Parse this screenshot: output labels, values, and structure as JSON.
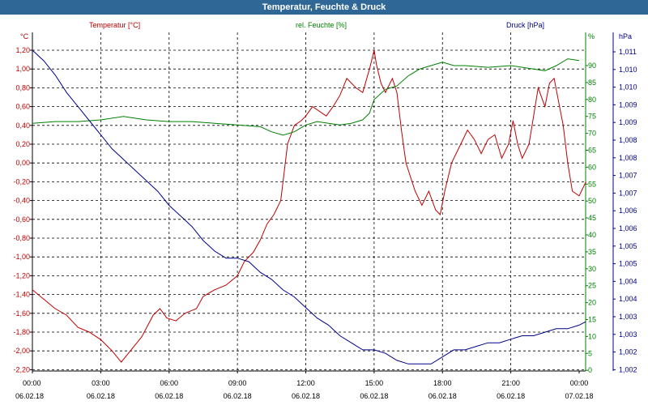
{
  "window": {
    "title": "Temperatur, Feuchte & Druck"
  },
  "chart_data": {
    "type": "line",
    "title": "Temperatur, Feuchte & Druck",
    "grid": true,
    "x_ticks": [
      {
        "time": "00:00",
        "date": "06.02.18"
      },
      {
        "time": "03:00",
        "date": "06.02.18"
      },
      {
        "time": "06:00",
        "date": "06.02.18"
      },
      {
        "time": "09:00",
        "date": "06.02.18"
      },
      {
        "time": "12:00",
        "date": "06.02.18"
      },
      {
        "time": "15:00",
        "date": "06.02.18"
      },
      {
        "time": "18:00",
        "date": "06.02.18"
      },
      {
        "time": "21:00",
        "date": "06.02.18"
      },
      {
        "time": "00:00",
        "date": "07.02.18"
      }
    ],
    "xlim_hours": [
      0,
      24
    ],
    "axes": {
      "temperature": {
        "label": "Temperatur [°C]",
        "unit": "°C",
        "color": "#c00000",
        "side": "left",
        "ylim": [
          -2.2,
          1.3
        ],
        "ticks": [
          "1,20",
          "1,00",
          "0,80",
          "0,60",
          "0,40",
          "0,20",
          "0,00",
          "-0,20",
          "-0,40",
          "-0,60",
          "-0,80",
          "-1,00",
          "-1,20",
          "-1,40",
          "-1,60",
          "-1,80",
          "-2,00",
          "-2,20"
        ]
      },
      "humidity": {
        "label": "rel. Feuchte [%]",
        "unit": "%",
        "color": "#008000",
        "side": "right",
        "ylim": [
          0,
          100
        ],
        "ticks": [
          "90",
          "85",
          "80",
          "75",
          "70",
          "65",
          "60",
          "55",
          "50",
          "45",
          "40",
          "35",
          "30",
          "25",
          "20",
          "15",
          "10",
          "5",
          "0"
        ]
      },
      "pressure": {
        "label": "Druck [hPa]",
        "unit": "hPa",
        "color": "#00008b",
        "side": "right",
        "ylim": [
          1.002,
          1.0115
        ],
        "ticks": [
          "1,011",
          "1,010",
          "1,010",
          "1,009",
          "1,009",
          "1,008",
          "1,008",
          "1,007",
          "1,007",
          "1,006",
          "1,006",
          "1,005",
          "1,005",
          "1,004",
          "1,004",
          "1,003",
          "1,003",
          "1,002",
          "1,002"
        ]
      }
    },
    "series": [
      {
        "name": "Temperatur [°C]",
        "axis": "temperature",
        "color": "#c00000",
        "points": [
          [
            0,
            -1.35
          ],
          [
            0.5,
            -1.45
          ],
          [
            1,
            -1.55
          ],
          [
            1.5,
            -1.62
          ],
          [
            2,
            -1.75
          ],
          [
            2.5,
            -1.8
          ],
          [
            3,
            -1.88
          ],
          [
            3.5,
            -2.0
          ],
          [
            3.9,
            -2.12
          ],
          [
            4.3,
            -2.0
          ],
          [
            4.8,
            -1.85
          ],
          [
            5.3,
            -1.62
          ],
          [
            5.6,
            -1.55
          ],
          [
            5.9,
            -1.65
          ],
          [
            6.3,
            -1.68
          ],
          [
            6.7,
            -1.6
          ],
          [
            7.2,
            -1.55
          ],
          [
            7.5,
            -1.42
          ],
          [
            8,
            -1.35
          ],
          [
            8.5,
            -1.3
          ],
          [
            9,
            -1.2
          ],
          [
            9.3,
            -1.05
          ],
          [
            9.7,
            -0.95
          ],
          [
            10,
            -0.82
          ],
          [
            10.3,
            -0.65
          ],
          [
            10.6,
            -0.55
          ],
          [
            10.9,
            -0.4
          ],
          [
            11.2,
            0.2
          ],
          [
            11.5,
            0.4
          ],
          [
            11.8,
            0.45
          ],
          [
            12,
            0.5
          ],
          [
            12.3,
            0.6
          ],
          [
            12.6,
            0.55
          ],
          [
            12.9,
            0.5
          ],
          [
            13.2,
            0.6
          ],
          [
            13.5,
            0.72
          ],
          [
            13.8,
            0.9
          ],
          [
            14.2,
            0.8
          ],
          [
            14.5,
            0.75
          ],
          [
            14.8,
            1.0
          ],
          [
            15.0,
            1.2
          ],
          [
            15.1,
            1.05
          ],
          [
            15.3,
            0.85
          ],
          [
            15.5,
            0.75
          ],
          [
            15.8,
            0.9
          ],
          [
            16.0,
            0.75
          ],
          [
            16.2,
            0.35
          ],
          [
            16.4,
            0.0
          ],
          [
            16.8,
            -0.3
          ],
          [
            17.1,
            -0.45
          ],
          [
            17.4,
            -0.3
          ],
          [
            17.7,
            -0.5
          ],
          [
            17.9,
            -0.55
          ],
          [
            18.1,
            -0.3
          ],
          [
            18.4,
            0.0
          ],
          [
            18.8,
            0.2
          ],
          [
            19.1,
            0.35
          ],
          [
            19.4,
            0.25
          ],
          [
            19.7,
            0.1
          ],
          [
            20.0,
            0.25
          ],
          [
            20.3,
            0.3
          ],
          [
            20.6,
            0.05
          ],
          [
            20.9,
            0.2
          ],
          [
            21.1,
            0.45
          ],
          [
            21.3,
            0.2
          ],
          [
            21.5,
            0.05
          ],
          [
            21.8,
            0.2
          ],
          [
            22.0,
            0.5
          ],
          [
            22.2,
            0.8
          ],
          [
            22.5,
            0.6
          ],
          [
            22.7,
            0.85
          ],
          [
            22.9,
            0.9
          ],
          [
            23.1,
            0.65
          ],
          [
            23.3,
            0.4
          ],
          [
            23.5,
            0.0
          ],
          [
            23.7,
            -0.3
          ],
          [
            24.0,
            -0.35
          ],
          [
            24.3,
            -0.2
          ]
        ]
      },
      {
        "name": "rel. Feuchte [%]",
        "axis": "humidity",
        "color": "#008000",
        "points": [
          [
            0,
            73
          ],
          [
            1,
            73.5
          ],
          [
            2,
            73.5
          ],
          [
            3,
            74
          ],
          [
            4,
            75
          ],
          [
            5,
            74
          ],
          [
            6,
            73.5
          ],
          [
            7,
            73.5
          ],
          [
            8,
            73
          ],
          [
            9,
            72.5
          ],
          [
            10,
            72
          ],
          [
            10.5,
            70.5
          ],
          [
            11,
            69.5
          ],
          [
            11.5,
            70.5
          ],
          [
            12,
            72.5
          ],
          [
            12.5,
            73.5
          ],
          [
            13,
            73
          ],
          [
            13.5,
            72.5
          ],
          [
            14,
            73
          ],
          [
            14.5,
            74
          ],
          [
            14.8,
            76
          ],
          [
            15,
            80
          ],
          [
            15.5,
            83
          ],
          [
            16,
            84
          ],
          [
            16.5,
            87
          ],
          [
            17,
            89
          ],
          [
            17.5,
            90
          ],
          [
            18,
            91
          ],
          [
            18.5,
            90
          ],
          [
            19,
            90
          ],
          [
            20,
            89.5
          ],
          [
            21,
            90
          ],
          [
            21.5,
            89.5
          ],
          [
            22,
            89
          ],
          [
            22.5,
            88.5
          ],
          [
            23,
            90
          ],
          [
            23.5,
            92
          ],
          [
            24,
            91.5
          ]
        ]
      },
      {
        "name": "Druck [hPa]",
        "axis": "pressure",
        "color": "#00008b",
        "points": [
          [
            0,
            1.0111
          ],
          [
            0.5,
            1.0108
          ],
          [
            1,
            1.0104
          ],
          [
            1.5,
            1.0099
          ],
          [
            2,
            1.0095
          ],
          [
            2.5,
            1.0091
          ],
          [
            3,
            1.0087
          ],
          [
            3.5,
            1.0083
          ],
          [
            4,
            1.008
          ],
          [
            4.5,
            1.0077
          ],
          [
            5,
            1.0074
          ],
          [
            5.5,
            1.0071
          ],
          [
            6,
            1.0067
          ],
          [
            6.5,
            1.0064
          ],
          [
            7,
            1.0061
          ],
          [
            7.5,
            1.0057
          ],
          [
            8,
            1.0054
          ],
          [
            8.5,
            1.0052
          ],
          [
            9,
            1.0052
          ],
          [
            9.5,
            1.0051
          ],
          [
            10,
            1.0048
          ],
          [
            10.5,
            1.0046
          ],
          [
            11,
            1.0043
          ],
          [
            11.5,
            1.0041
          ],
          [
            12,
            1.0038
          ],
          [
            12.5,
            1.0035
          ],
          [
            13,
            1.0033
          ],
          [
            13.5,
            1.003
          ],
          [
            14,
            1.0028
          ],
          [
            14.5,
            1.0026
          ],
          [
            15,
            1.0026
          ],
          [
            15.5,
            1.0025
          ],
          [
            16,
            1.0023
          ],
          [
            16.5,
            1.0022
          ],
          [
            17,
            1.0022
          ],
          [
            17.5,
            1.0022
          ],
          [
            18,
            1.0024
          ],
          [
            18.5,
            1.0026
          ],
          [
            19,
            1.0026
          ],
          [
            19.5,
            1.0027
          ],
          [
            20,
            1.0028
          ],
          [
            20.5,
            1.0028
          ],
          [
            21,
            1.0029
          ],
          [
            21.5,
            1.003
          ],
          [
            22,
            1.003
          ],
          [
            22.5,
            1.0031
          ],
          [
            23,
            1.0032
          ],
          [
            23.5,
            1.0032
          ],
          [
            24,
            1.0033
          ],
          [
            24.3,
            1.0034
          ]
        ]
      }
    ]
  }
}
